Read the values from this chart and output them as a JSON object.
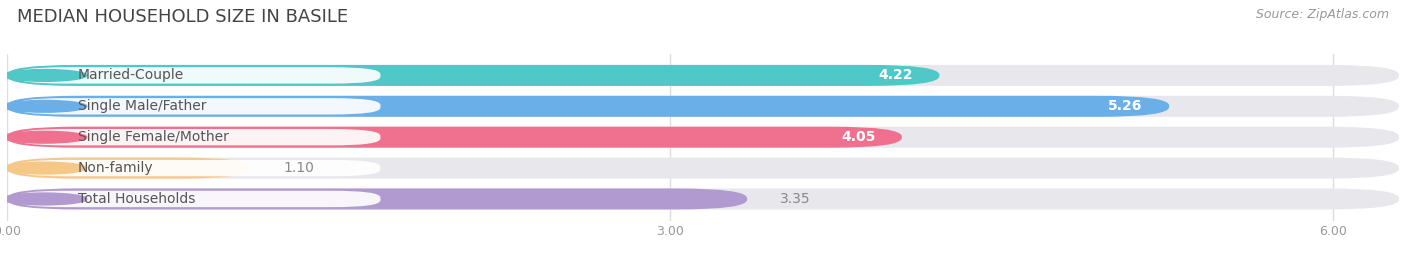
{
  "title": "MEDIAN HOUSEHOLD SIZE IN BASILE",
  "source": "Source: ZipAtlas.com",
  "categories": [
    "Married-Couple",
    "Single Male/Father",
    "Single Female/Mother",
    "Non-family",
    "Total Households"
  ],
  "values": [
    4.22,
    5.26,
    4.05,
    1.1,
    3.35
  ],
  "bar_colors": [
    "#50c8c8",
    "#6aafe8",
    "#f07090",
    "#f5c888",
    "#b09ad0"
  ],
  "bar_bg_color": "#e8e8ec",
  "label_dot_colors": [
    "#50c8c8",
    "#6aafe8",
    "#f07090",
    "#f5c888",
    "#b09ad0"
  ],
  "xlim": [
    0,
    6.3
  ],
  "xticks": [
    0.0,
    3.0,
    6.0
  ],
  "xtick_labels": [
    "0.00",
    "3.00",
    "6.00"
  ],
  "value_label_threshold": 3.5,
  "background_color": "#ffffff",
  "bar_height": 0.68,
  "bar_gap": 0.32,
  "title_fontsize": 13,
  "source_fontsize": 9,
  "label_fontsize": 10,
  "category_fontsize": 10,
  "value_color_inside": "#ffffff",
  "value_color_outside": "#888888",
  "category_label_color": "#555555"
}
